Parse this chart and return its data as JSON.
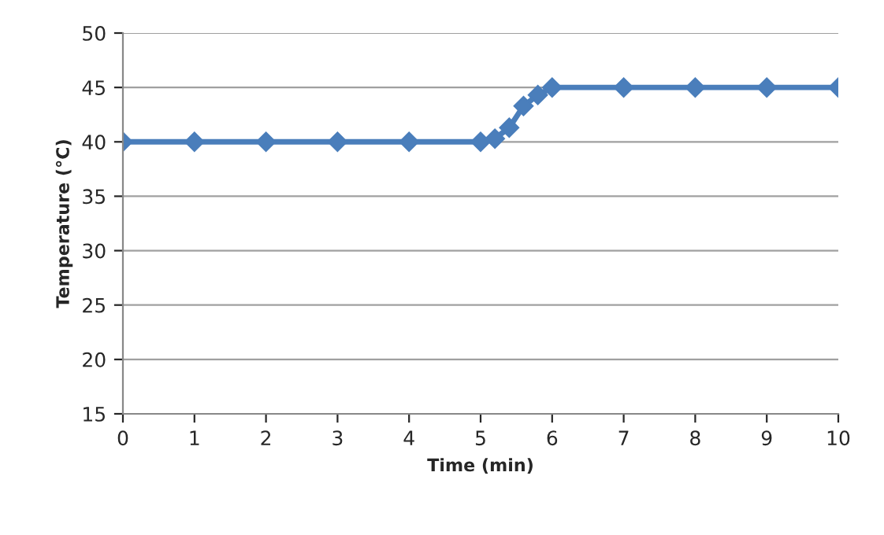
{
  "chart_data": {
    "type": "line",
    "xlabel": "Time (min)",
    "ylabel": "Temperature (°C)",
    "x": [
      0,
      1,
      2,
      3,
      4,
      5,
      5.2,
      5.4,
      5.6,
      5.8,
      6,
      7,
      8,
      9,
      10
    ],
    "series": [
      {
        "color": "#4a7ebb",
        "values": [
          40,
          40,
          40,
          40,
          40,
          40,
          40.3,
          41.3,
          43.3,
          44.3,
          45,
          45,
          45,
          45,
          45
        ]
      }
    ],
    "xlim": [
      0,
      10
    ],
    "xticks": [
      0,
      1,
      2,
      3,
      4,
      5,
      6,
      7,
      8,
      9,
      10
    ],
    "ylim": [
      15,
      50
    ],
    "yticks": [
      15,
      20,
      25,
      30,
      35,
      40,
      45,
      50
    ],
    "grid": "y",
    "marker": "diamond",
    "line_style": "solid"
  }
}
